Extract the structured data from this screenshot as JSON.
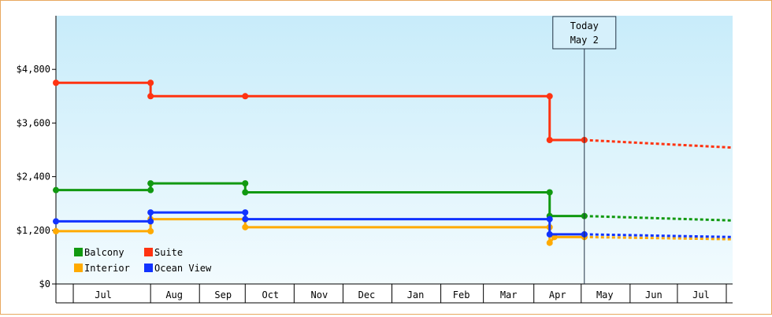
{
  "chart_data": {
    "type": "line",
    "title": "",
    "xlabel": "",
    "ylabel": "",
    "ylim": [
      0,
      6000
    ],
    "y_ticks": [
      {
        "value": 0,
        "label": "$0"
      },
      {
        "value": 1200,
        "label": "$1,200"
      },
      {
        "value": 2400,
        "label": "$2,400"
      },
      {
        "value": 3600,
        "label": "$3,600"
      },
      {
        "value": 4800,
        "label": "$4,800"
      }
    ],
    "x_range": [
      "2025-06-01",
      "2026-08-04"
    ],
    "month_boundaries": [
      "2025-06-12",
      "2025-07-31",
      "2025-08-31",
      "2025-09-29",
      "2025-10-30",
      "2025-11-30",
      "2025-12-31",
      "2026-01-31",
      "2026-02-27",
      "2026-03-31",
      "2026-04-30",
      "2026-05-31",
      "2026-06-30",
      "2026-07-31"
    ],
    "x_ticks": [
      {
        "label": "Jul",
        "date": "2025-07-01"
      },
      {
        "label": "Aug",
        "date": "2025-08-15"
      },
      {
        "label": "Sep",
        "date": "2025-09-15"
      },
      {
        "label": "Oct",
        "date": "2025-10-15"
      },
      {
        "label": "Nov",
        "date": "2025-11-15"
      },
      {
        "label": "Dec",
        "date": "2025-12-15"
      },
      {
        "label": "Jan",
        "date": "2026-01-15"
      },
      {
        "label": "Feb",
        "date": "2026-02-13"
      },
      {
        "label": "Mar",
        "date": "2026-03-15"
      },
      {
        "label": "Apr",
        "date": "2026-04-15"
      },
      {
        "label": "May",
        "date": "2026-05-15"
      },
      {
        "label": "Jun",
        "date": "2026-06-15"
      },
      {
        "label": "Jul",
        "date": "2026-07-15"
      }
    ],
    "today": {
      "line1": "Today",
      "line2": "May 2",
      "date": "2026-05-02"
    },
    "legend_position": "bottom-left",
    "grid": false,
    "series": [
      {
        "name": "Balcony",
        "color": "#119911",
        "points": [
          {
            "x": "2025-06-01",
            "y": 2100
          },
          {
            "x": "2025-07-31",
            "y": 2100
          },
          {
            "x": "2025-07-31",
            "y": 2250
          },
          {
            "x": "2025-09-29",
            "y": 2250
          },
          {
            "x": "2025-09-29",
            "y": 2050
          },
          {
            "x": "2026-04-10",
            "y": 2050
          },
          {
            "x": "2026-04-10",
            "y": 1520
          },
          {
            "x": "2026-05-02",
            "y": 1520
          }
        ],
        "forecast": [
          {
            "x": "2026-05-02",
            "y": 1520
          },
          {
            "x": "2026-08-04",
            "y": 1420
          }
        ]
      },
      {
        "name": "Suite",
        "color": "#ff3311",
        "points": [
          {
            "x": "2025-06-01",
            "y": 4500
          },
          {
            "x": "2025-07-31",
            "y": 4500
          },
          {
            "x": "2025-07-31",
            "y": 4200
          },
          {
            "x": "2025-09-29",
            "y": 4200
          },
          {
            "x": "2026-04-10",
            "y": 4200
          },
          {
            "x": "2026-04-10",
            "y": 3220
          },
          {
            "x": "2026-05-02",
            "y": 3220
          }
        ],
        "forecast": [
          {
            "x": "2026-05-02",
            "y": 3220
          },
          {
            "x": "2026-08-04",
            "y": 3050
          }
        ]
      },
      {
        "name": "Interior",
        "color": "#ffaa00",
        "points": [
          {
            "x": "2025-06-01",
            "y": 1180
          },
          {
            "x": "2025-07-31",
            "y": 1180
          },
          {
            "x": "2025-07-31",
            "y": 1450
          },
          {
            "x": "2025-09-29",
            "y": 1450
          },
          {
            "x": "2025-09-29",
            "y": 1270
          },
          {
            "x": "2026-04-10",
            "y": 1270
          },
          {
            "x": "2026-04-10",
            "y": 920
          },
          {
            "x": "2026-04-13",
            "y": 1050
          },
          {
            "x": "2026-05-02",
            "y": 1050
          }
        ],
        "forecast": [
          {
            "x": "2026-05-02",
            "y": 1050
          },
          {
            "x": "2026-08-04",
            "y": 1000
          }
        ]
      },
      {
        "name": "Ocean View",
        "color": "#1133ff",
        "points": [
          {
            "x": "2025-06-01",
            "y": 1400
          },
          {
            "x": "2025-07-31",
            "y": 1400
          },
          {
            "x": "2025-07-31",
            "y": 1600
          },
          {
            "x": "2025-09-29",
            "y": 1600
          },
          {
            "x": "2025-09-29",
            "y": 1450
          },
          {
            "x": "2026-04-10",
            "y": 1450
          },
          {
            "x": "2026-04-10",
            "y": 1110
          },
          {
            "x": "2026-05-02",
            "y": 1110
          }
        ],
        "forecast": [
          {
            "x": "2026-05-02",
            "y": 1110
          },
          {
            "x": "2026-08-04",
            "y": 1050
          }
        ]
      }
    ]
  }
}
